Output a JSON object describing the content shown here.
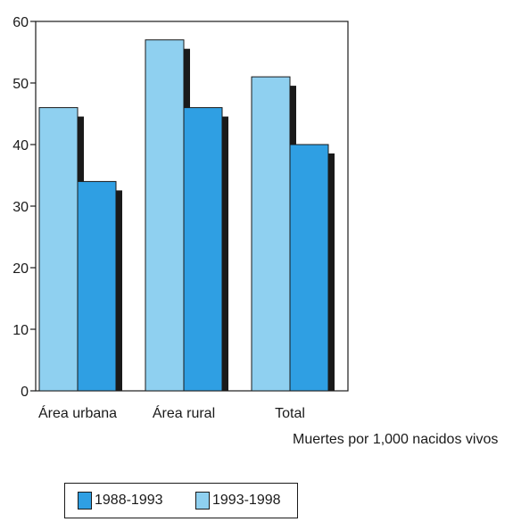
{
  "chart_data": {
    "type": "bar",
    "categories": [
      "Área urbana",
      "Área rural",
      "Total"
    ],
    "series": [
      {
        "name": "1993-1998",
        "values": [
          46,
          57,
          51
        ],
        "color": "#8fd0f0"
      },
      {
        "name": "1988-1993",
        "values": [
          34,
          46,
          40
        ],
        "color": "#2f9fe3"
      }
    ],
    "ylim": [
      0,
      60
    ],
    "yticks": [
      0,
      10,
      20,
      30,
      40,
      50,
      60
    ],
    "grid": false,
    "shadow_color": "#1a1a1a",
    "unit_note": "Muertes por 1,000 nacidos vivos",
    "legend": {
      "placement": "bottom-left",
      "items": [
        {
          "label": "1988-1993",
          "color": "#2f9fe3"
        },
        {
          "label": "1993-1998",
          "color": "#8fd0f0"
        }
      ]
    }
  }
}
